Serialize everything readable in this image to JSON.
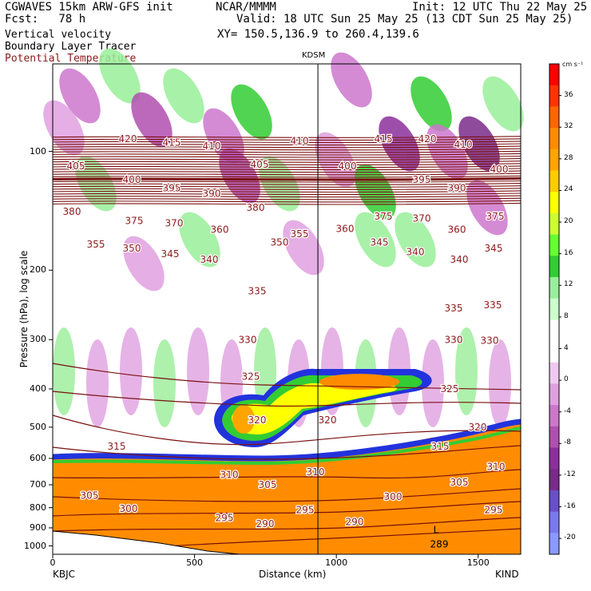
{
  "header": {
    "model": "CGWAVES 15km ARW-GFS init",
    "fcst": "Fcst:   78 h",
    "line3": "Vertical velocity",
    "line4": "Boundary Layer Tracer",
    "line5": "Potential Temperature",
    "center": "NCAR/MMMM",
    "init": "Init: 12 UTC Thu 22 May 25",
    "valid": "Valid: 18 UTC Sun 25 May 25 (13 CDT Sun 25 May 25)",
    "xy": "XY= 150.5,136.9 to 260.4,139.6"
  },
  "colors": {
    "theta": "#7a1010",
    "theta_text": "#8b1a1a"
  },
  "chart_data": {
    "type": "heatmap",
    "title": "KDSM",
    "xlabel": "Distance (km)",
    "ylabel": "Pressure (hPa), log scale",
    "x_ticks": [
      "0",
      "500",
      "1000",
      "1500"
    ],
    "x_tick_values": [
      0,
      500,
      1000,
      1500
    ],
    "y_ticks": [
      "100",
      "200",
      "300",
      "400",
      "500",
      "600",
      "700",
      "800",
      "900",
      "1000"
    ],
    "y_tick_values": [
      100,
      200,
      300,
      400,
      500,
      600,
      700,
      800,
      900,
      1000
    ],
    "xlim": [
      0,
      1650
    ],
    "ylim": [
      1050,
      60
    ],
    "y_scale": "log",
    "left_station": "KBJC",
    "right_station": "KIND",
    "marker_station": "KDSM",
    "marker_x": 935,
    "colorbar": {
      "unit": "cm s⁻¹",
      "labels": [
        "36",
        "32",
        "28",
        "24",
        "20",
        "16",
        "12",
        "8",
        "4",
        "0",
        "-4",
        "-8",
        "-12",
        "-16",
        "-20"
      ],
      "label_values": [
        36,
        32,
        28,
        24,
        20,
        16,
        12,
        8,
        4,
        0,
        -4,
        -8,
        -12,
        -16,
        -20
      ],
      "colors": [
        "#ff0000",
        "#ff3300",
        "#ff6600",
        "#ff8c00",
        "#ffa500",
        "#ffcc00",
        "#ffff00",
        "#ccff33",
        "#66ff33",
        "#33cc33",
        "#99ee99",
        "#ccffcc",
        "#ffffff",
        "#ffffff",
        "#f0c8f0",
        "#e0a0e0",
        "#cc77cc",
        "#b04fb0",
        "#8c2f9c",
        "#7a2a8a",
        "#6a4fc8",
        "#7a7aee",
        "#8a9aff"
      ]
    },
    "theta_labels": [
      {
        "v": "420",
        "x": 160,
        "p": 93
      },
      {
        "v": "415",
        "x": 215,
        "p": 95
      },
      {
        "v": "410",
        "x": 265,
        "p": 97
      },
      {
        "v": "410",
        "x": 375,
        "p": 94
      },
      {
        "v": "415",
        "x": 480,
        "p": 93
      },
      {
        "v": "420",
        "x": 535,
        "p": 93
      },
      {
        "v": "410",
        "x": 580,
        "p": 96
      },
      {
        "v": "405",
        "x": 95,
        "p": 109
      },
      {
        "v": "405",
        "x": 325,
        "p": 108
      },
      {
        "v": "400",
        "x": 165,
        "p": 118
      },
      {
        "v": "400",
        "x": 435,
        "p": 109
      },
      {
        "v": "400",
        "x": 625,
        "p": 111
      },
      {
        "v": "395",
        "x": 215,
        "p": 124
      },
      {
        "v": "395",
        "x": 528,
        "p": 118
      },
      {
        "v": "390",
        "x": 265,
        "p": 128
      },
      {
        "v": "390",
        "x": 572,
        "p": 124
      },
      {
        "v": "380",
        "x": 90,
        "p": 142
      },
      {
        "v": "380",
        "x": 320,
        "p": 139
      },
      {
        "v": "375",
        "x": 168,
        "p": 150
      },
      {
        "v": "370",
        "x": 218,
        "p": 152
      },
      {
        "v": "375",
        "x": 480,
        "p": 146
      },
      {
        "v": "370",
        "x": 528,
        "p": 148
      },
      {
        "v": "375",
        "x": 620,
        "p": 146
      },
      {
        "v": "360",
        "x": 275,
        "p": 158
      },
      {
        "v": "360",
        "x": 432,
        "p": 157
      },
      {
        "v": "360",
        "x": 572,
        "p": 158
      },
      {
        "v": "355",
        "x": 375,
        "p": 162
      },
      {
        "v": "355",
        "x": 120,
        "p": 172
      },
      {
        "v": "350",
        "x": 165,
        "p": 176
      },
      {
        "v": "350",
        "x": 350,
        "p": 170
      },
      {
        "v": "345",
        "x": 213,
        "p": 182
      },
      {
        "v": "340",
        "x": 262,
        "p": 188
      },
      {
        "v": "345",
        "x": 475,
        "p": 170
      },
      {
        "v": "340",
        "x": 520,
        "p": 180
      },
      {
        "v": "340",
        "x": 575,
        "p": 188
      },
      {
        "v": "345",
        "x": 618,
        "p": 176
      },
      {
        "v": "335",
        "x": 322,
        "p": 226
      },
      {
        "v": "335",
        "x": 568,
        "p": 250
      },
      {
        "v": "335",
        "x": 617,
        "p": 245
      },
      {
        "v": "330",
        "x": 310,
        "p": 300
      },
      {
        "v": "330",
        "x": 568,
        "p": 300
      },
      {
        "v": "330",
        "x": 613,
        "p": 302
      },
      {
        "v": "325",
        "x": 314,
        "p": 372
      },
      {
        "v": "325",
        "x": 563,
        "p": 400
      },
      {
        "v": "320",
        "x": 322,
        "p": 480
      },
      {
        "v": "320",
        "x": 410,
        "p": 480
      },
      {
        "v": "320",
        "x": 598,
        "p": 500
      },
      {
        "v": "315",
        "x": 146,
        "p": 560
      },
      {
        "v": "315",
        "x": 551,
        "p": 560
      },
      {
        "v": "310",
        "x": 287,
        "p": 660
      },
      {
        "v": "310",
        "x": 395,
        "p": 650
      },
      {
        "v": "310",
        "x": 621,
        "p": 630
      },
      {
        "v": "305",
        "x": 112,
        "p": 745
      },
      {
        "v": "305",
        "x": 335,
        "p": 700
      },
      {
        "v": "305",
        "x": 575,
        "p": 690
      },
      {
        "v": "300",
        "x": 161,
        "p": 805
      },
      {
        "v": "300",
        "x": 492,
        "p": 750
      },
      {
        "v": "295",
        "x": 281,
        "p": 850
      },
      {
        "v": "295",
        "x": 382,
        "p": 810
      },
      {
        "v": "295",
        "x": 618,
        "p": 810
      },
      {
        "v": "290",
        "x": 332,
        "p": 880
      },
      {
        "v": "290",
        "x": 444,
        "p": 870
      }
    ],
    "other_marks": [
      {
        "v": "L",
        "x": 546,
        "p": 910
      },
      {
        "v": "289",
        "x": 550,
        "p": 990
      }
    ]
  }
}
